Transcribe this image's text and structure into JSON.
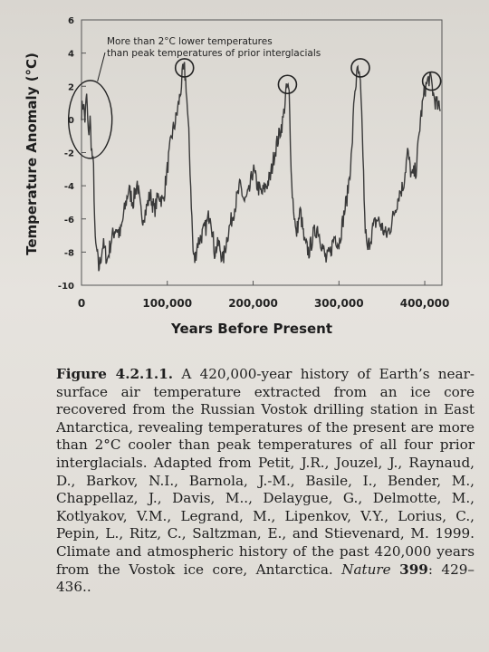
{
  "chart_data": {
    "type": "line",
    "ylabel": "Temperature Anomaly (°C)",
    "xlabel": "Years Before Present",
    "xlim": [
      0,
      420000
    ],
    "ylim": [
      -10,
      6
    ],
    "x_ticks": [
      0,
      100000,
      200000,
      300000,
      400000
    ],
    "x_tick_labels": [
      "0",
      "100,000",
      "200,000",
      "300,000",
      "400,000"
    ],
    "y_ticks": [
      6,
      4,
      2,
      0,
      -2,
      -4,
      -6,
      -8,
      -10
    ],
    "y_tick_labels": [
      "6",
      "4",
      "2",
      "0",
      "-2",
      "-4",
      "-6",
      "-8",
      "-10"
    ],
    "grid": false,
    "series": [
      {
        "x": [
          0,
          2000,
          4000,
          6000,
          8000,
          10000,
          12000,
          14000,
          16000,
          18000,
          20000,
          22000,
          25000,
          30000,
          35000,
          40000,
          45000,
          50000,
          55000,
          60000,
          65000,
          70000,
          75000,
          80000,
          85000,
          90000,
          95000,
          100000,
          105000,
          110000,
          115000,
          118000,
          120000,
          122000,
          125000,
          128000,
          130000,
          132000,
          135000,
          140000,
          145000,
          150000,
          155000,
          160000,
          165000,
          170000,
          175000,
          180000,
          185000,
          190000,
          195000,
          200000,
          205000,
          210000,
          215000,
          220000,
          225000,
          230000,
          235000,
          238000,
          240000,
          242000,
          245000,
          250000,
          255000,
          260000,
          265000,
          270000,
          275000,
          280000,
          285000,
          290000,
          295000,
          300000,
          305000,
          310000,
          315000,
          318000,
          322000,
          325000,
          328000,
          330000,
          333000,
          335000,
          340000,
          345000,
          350000,
          355000,
          360000,
          365000,
          370000,
          375000,
          380000,
          385000,
          390000,
          395000,
          400000,
          405000,
          408000,
          410000,
          413000,
          415000,
          418000
        ],
        "values": [
          0.5,
          1,
          0,
          1.5,
          -1,
          0,
          -2,
          -3,
          -7.5,
          -8,
          -9,
          -8.5,
          -7.5,
          -8.5,
          -7.2,
          -6.5,
          -7,
          -5.5,
          -4.2,
          -5,
          -3.8,
          -6,
          -5.5,
          -4.5,
          -5.5,
          -4.5,
          -5,
          -3,
          -1,
          0,
          1.5,
          2.8,
          3,
          2,
          -1,
          -5,
          -8,
          -8.5,
          -7.5,
          -7,
          -6.5,
          -5.5,
          -8,
          -7.5,
          -8.5,
          -7,
          -6,
          -5,
          -4,
          -5,
          -4.5,
          -3,
          -4,
          -4.5,
          -4,
          -3.5,
          -2,
          -1,
          0,
          1.5,
          2,
          1.5,
          -4,
          -7,
          -5.5,
          -7.5,
          -8,
          -7,
          -6.5,
          -7.5,
          -8.5,
          -8,
          -7,
          -7.5,
          -6,
          -4.5,
          -2,
          1.5,
          3,
          2,
          -2,
          -6,
          -8,
          -7.5,
          -6.5,
          -6,
          -6.5,
          -7,
          -6.5,
          -5.5,
          -4.5,
          -4,
          -2,
          -3.5,
          -3,
          0,
          1.8,
          2.5,
          2.2,
          1.5,
          1,
          0.8,
          0.5
        ]
      }
    ],
    "annotations": [
      {
        "text_line1": "More than 2°C lower temperatures",
        "text_line2": "than peak temperatures of prior interglacials",
        "circles": [
          {
            "x": 6000,
            "y": 0,
            "kind": "present"
          },
          {
            "x": 120000,
            "y": 3,
            "kind": "peak"
          },
          {
            "x": 240000,
            "y": 2,
            "kind": "peak"
          },
          {
            "x": 325000,
            "y": 3,
            "kind": "peak"
          },
          {
            "x": 408000,
            "y": 2.2,
            "kind": "peak"
          }
        ]
      }
    ]
  },
  "caption": {
    "figure_number": "Figure 4.2.1.1.",
    "body": " A 420,000-year history of Earth’s near-surface air temperature extracted from an ice core recovered from the Russian Vostok drilling station in East Antarctica, revealing temperatures of the present are more than 2°C cooler than peak temperatures of all four prior interglacials. Adapted from  Petit, J.R., Jouzel, J., Raynaud, D., Barkov, N.I., Barnola, J.-M., Basile, I., Bender, M., Chappellaz, J., Davis, M.., Delaygue, G., Delmotte, M., Kotlyakov, V.M., Legrand, M., Lipenkov, V.Y., Lorius, C., Pepin, L., Ritz, C., Saltzman, E., and Stievenard, M. 1999. Climate and atmospheric history of the past 420,000 years from the Vostok ice core, Antarctica. ",
    "journal": "Nature",
    "volume": "399",
    "pages": ": 429–436.."
  }
}
